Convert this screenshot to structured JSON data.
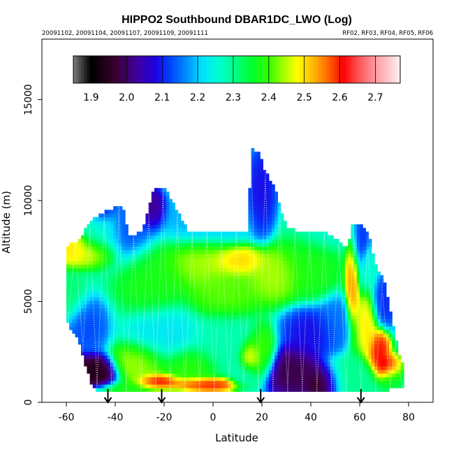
{
  "chart_data": {
    "type": "heatmap",
    "title": "HIPPO2 Southbound DBAR1DC_LWO (Log)",
    "subtitle_left": "20091102, 20091104, 20091107, 20091109, 20091111",
    "subtitle_right": "RF02, RF03, RF04, RF05, RF06",
    "xlabel": "Latitude",
    "ylabel": "Altitude (m)",
    "xlim": [
      -70,
      90
    ],
    "ylim": [
      0,
      18000
    ],
    "xticks": [
      "-60",
      "-40",
      "-20",
      "0",
      "20",
      "40",
      "60",
      "80"
    ],
    "xtick_values": [
      -60,
      -40,
      -20,
      0,
      20,
      40,
      60,
      80
    ],
    "yticks": [
      "0",
      "5000",
      "10000",
      "15000"
    ],
    "ytick_values": [
      0,
      5000,
      10000,
      15000
    ],
    "colorbar": {
      "min": 1.85,
      "max": 2.77,
      "tick_labels": [
        "1.9",
        "2.0",
        "2.1",
        "2.2",
        "2.3",
        "2.4",
        "2.5",
        "2.6",
        "2.7"
      ],
      "tick_values": [
        1.9,
        2.0,
        2.1,
        2.2,
        2.3,
        2.4,
        2.5,
        2.6,
        2.7
      ],
      "stops": [
        {
          "v": 1.85,
          "c": "#7f7f7f"
        },
        {
          "v": 1.88,
          "c": "#2e2e2e"
        },
        {
          "v": 1.9,
          "c": "#000000"
        },
        {
          "v": 1.97,
          "c": "#3a0030"
        },
        {
          "v": 2.03,
          "c": "#4000a0"
        },
        {
          "v": 2.08,
          "c": "#2000e0"
        },
        {
          "v": 2.12,
          "c": "#0040ff"
        },
        {
          "v": 2.17,
          "c": "#0090ff"
        },
        {
          "v": 2.21,
          "c": "#00e0ff"
        },
        {
          "v": 2.26,
          "c": "#00ffd0"
        },
        {
          "v": 2.3,
          "c": "#00ff90"
        },
        {
          "v": 2.35,
          "c": "#00ff30"
        },
        {
          "v": 2.4,
          "c": "#30ff00"
        },
        {
          "v": 2.44,
          "c": "#a0ff00"
        },
        {
          "v": 2.48,
          "c": "#ffff00"
        },
        {
          "v": 2.53,
          "c": "#ffb000"
        },
        {
          "v": 2.57,
          "c": "#ff6000"
        },
        {
          "v": 2.61,
          "c": "#ff0000"
        },
        {
          "v": 2.65,
          "c": "#ff5050"
        },
        {
          "v": 2.7,
          "c": "#ff9aa0"
        },
        {
          "v": 2.77,
          "c": "#fff0f0"
        }
      ]
    },
    "field": {
      "centers": [
        {
          "lat": -45,
          "alt": 8400,
          "v": 2.28,
          "sx": 6,
          "sz": 1200
        },
        {
          "lat": -48,
          "alt": 7400,
          "v": 2.5,
          "sx": 6,
          "sz": 500
        },
        {
          "lat": -58,
          "alt": 7600,
          "v": 2.5,
          "sx": 5,
          "sz": 600
        },
        {
          "lat": -60,
          "alt": 5200,
          "v": 2.32,
          "sx": 6,
          "sz": 900
        },
        {
          "lat": -52,
          "alt": 3800,
          "v": 2.12,
          "sx": 6,
          "sz": 1000
        },
        {
          "lat": -48,
          "alt": 1500,
          "v": 1.92,
          "sx": 6,
          "sz": 600
        },
        {
          "lat": -57,
          "alt": 1700,
          "v": 1.95,
          "sx": 5,
          "sz": 500
        },
        {
          "lat": -25,
          "alt": 6200,
          "v": 2.38,
          "sx": 10,
          "sz": 1200
        },
        {
          "lat": -5,
          "alt": 7000,
          "v": 2.45,
          "sx": 10,
          "sz": 900
        },
        {
          "lat": 10,
          "alt": 7000,
          "v": 2.52,
          "sx": 8,
          "sz": 500
        },
        {
          "lat": 5,
          "alt": 5500,
          "v": 2.42,
          "sx": 10,
          "sz": 900
        },
        {
          "lat": 25,
          "alt": 6300,
          "v": 2.45,
          "sx": 8,
          "sz": 900
        },
        {
          "lat": 40,
          "alt": 6800,
          "v": 2.38,
          "sx": 8,
          "sz": 1200
        },
        {
          "lat": -20,
          "alt": 3300,
          "v": 2.22,
          "sx": 10,
          "sz": 1000
        },
        {
          "lat": 5,
          "alt": 3000,
          "v": 2.28,
          "sx": 10,
          "sz": 1000
        },
        {
          "lat": -35,
          "alt": 8600,
          "v": 2.12,
          "sx": 8,
          "sz": 1200
        },
        {
          "lat": -5,
          "alt": 9000,
          "v": 2.18,
          "sx": 12,
          "sz": 1000
        },
        {
          "lat": 20,
          "alt": 10500,
          "v": 2.08,
          "sx": 4,
          "sz": 1500
        },
        {
          "lat": 45,
          "alt": 8600,
          "v": 2.25,
          "sx": 8,
          "sz": 800
        },
        {
          "lat": -25,
          "alt": 9600,
          "v": 2.0,
          "sx": 4,
          "sz": 700
        },
        {
          "lat": -45,
          "alt": 9700,
          "v": 2.02,
          "sx": 4,
          "sz": 600
        },
        {
          "lat": -22,
          "alt": 1000,
          "v": 2.65,
          "sx": 6,
          "sz": 300
        },
        {
          "lat": -5,
          "alt": 900,
          "v": 2.62,
          "sx": 10,
          "sz": 250
        },
        {
          "lat": -30,
          "alt": 2000,
          "v": 2.45,
          "sx": 8,
          "sz": 700
        },
        {
          "lat": -10,
          "alt": 1800,
          "v": 2.4,
          "sx": 8,
          "sz": 700
        },
        {
          "lat": 15,
          "alt": 2300,
          "v": 2.52,
          "sx": 3,
          "sz": 600
        },
        {
          "lat": 13,
          "alt": 1400,
          "v": 2.28,
          "sx": 4,
          "sz": 500
        },
        {
          "lat": 20,
          "alt": 2500,
          "v": 2.42,
          "sx": 4,
          "sz": 900
        },
        {
          "lat": 33,
          "alt": 1500,
          "v": 1.97,
          "sx": 8,
          "sz": 900
        },
        {
          "lat": 45,
          "alt": 1000,
          "v": 1.92,
          "sx": 5,
          "sz": 600
        },
        {
          "lat": 40,
          "alt": 3500,
          "v": 2.08,
          "sx": 8,
          "sz": 900
        },
        {
          "lat": 50,
          "alt": 4000,
          "v": 2.15,
          "sx": 5,
          "sz": 900
        },
        {
          "lat": 57,
          "alt": 6000,
          "v": 2.55,
          "sx": 2,
          "sz": 1800
        },
        {
          "lat": 63,
          "alt": 4000,
          "v": 2.5,
          "sx": 3,
          "sz": 1200
        },
        {
          "lat": 68,
          "alt": 2500,
          "v": 2.62,
          "sx": 3,
          "sz": 800
        },
        {
          "lat": 72,
          "alt": 1800,
          "v": 2.73,
          "sx": 3,
          "sz": 400
        },
        {
          "lat": 73,
          "alt": 1500,
          "v": 2.36,
          "sx": 3,
          "sz": 600
        },
        {
          "lat": 70,
          "alt": 5000,
          "v": 2.1,
          "sx": 4,
          "sz": 900
        },
        {
          "lat": 60,
          "alt": 8000,
          "v": 2.1,
          "sx": 3,
          "sz": 1000
        },
        {
          "lat": 63,
          "alt": 6500,
          "v": 2.26,
          "sx": 3,
          "sz": 900
        },
        {
          "lat": 55,
          "alt": 1200,
          "v": 2.3,
          "sx": 8,
          "sz": 700
        },
        {
          "lat": -30,
          "alt": 500,
          "v": 2.38,
          "sx": 15,
          "sz": 400
        }
      ],
      "base": 2.28,
      "envelope": {
        "lat": [
          -60,
          -55,
          -50,
          -47,
          -43,
          -40,
          -37,
          -34,
          -29,
          -25,
          -24,
          -22,
          -20,
          -10,
          0,
          10,
          14,
          16,
          19,
          21,
          23,
          25,
          27,
          30,
          35,
          45,
          55,
          57,
          59,
          62,
          64,
          66,
          70,
          74,
          77
        ],
        "top": [
          7800,
          8000,
          9000,
          9300,
          9500,
          9700,
          9700,
          8200,
          8500,
          10300,
          10600,
          10700,
          10700,
          8500,
          8500,
          8500,
          8500,
          12600,
          12300,
          11600,
          11100,
          10800,
          9900,
          8700,
          8500,
          8500,
          7700,
          8800,
          8900,
          8700,
          8300,
          7000,
          6000,
          3600,
          2000
        ],
        "bot": [
          4000,
          3000,
          1000,
          500,
          500,
          500,
          500,
          500,
          500,
          500,
          500,
          500,
          500,
          500,
          500,
          500,
          500,
          500,
          500,
          500,
          500,
          500,
          500,
          500,
          500,
          500,
          500,
          500,
          500,
          500,
          500,
          500,
          500,
          800,
          700
        ]
      }
    },
    "profile_lats": [
      -58,
      -55,
      -52,
      -49,
      -46,
      -43,
      -40,
      -37,
      -34,
      -31,
      -28,
      -25,
      -22,
      -19,
      -16,
      -13,
      -10,
      -7,
      -4,
      -1,
      2,
      5,
      8,
      11,
      14,
      17,
      20,
      23,
      26,
      29,
      32,
      35,
      38,
      41,
      44,
      47,
      50,
      53,
      56,
      59,
      62,
      65,
      68,
      71,
      74,
      76
    ],
    "arrows": [
      {
        "lat": -43
      },
      {
        "lat": -21
      },
      {
        "lat": 19.5
      },
      {
        "lat": 60.5
      }
    ]
  }
}
